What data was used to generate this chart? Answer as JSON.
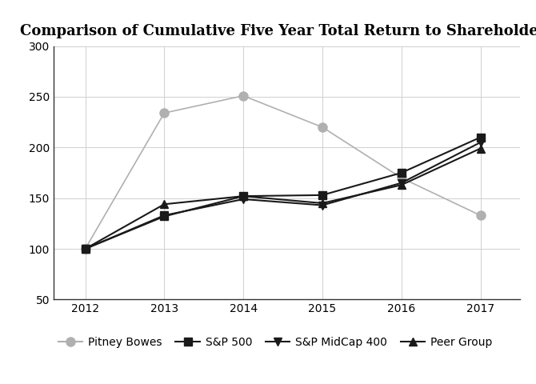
{
  "title": "Comparison of Cumulative Five Year Total Return to Shareholders",
  "years": [
    2012,
    2013,
    2014,
    2015,
    2016,
    2017
  ],
  "series": {
    "Pitney Bowes": [
      100,
      234,
      251,
      220,
      170,
      133
    ],
    "S&P 500": [
      100,
      132,
      152,
      153,
      175,
      210
    ],
    "S&P MidCap 400": [
      100,
      133,
      149,
      143,
      165,
      205
    ],
    "Peer Group": [
      100,
      144,
      152,
      145,
      163,
      199
    ]
  },
  "colors": {
    "Pitney Bowes": "#b0b0b0",
    "S&P 500": "#1a1a1a",
    "S&P MidCap 400": "#1a1a1a",
    "Peer Group": "#1a1a1a"
  },
  "markers": {
    "Pitney Bowes": "o",
    "S&P 500": "s",
    "S&P MidCap 400": "v",
    "Peer Group": "^"
  },
  "markersizes": {
    "Pitney Bowes": 8,
    "S&P 500": 7,
    "S&P MidCap 400": 7,
    "Peer Group": 7
  },
  "linewidths": {
    "Pitney Bowes": 1.2,
    "S&P 500": 1.5,
    "S&P MidCap 400": 1.5,
    "Peer Group": 1.5
  },
  "ylim": [
    50,
    300
  ],
  "yticks": [
    50,
    100,
    150,
    200,
    250,
    300
  ],
  "xlim": [
    2011.6,
    2017.5
  ],
  "background_color": "#ffffff",
  "grid_color": "#d0d0d0",
  "title_fontsize": 13,
  "tick_fontsize": 10,
  "legend_fontsize": 10
}
